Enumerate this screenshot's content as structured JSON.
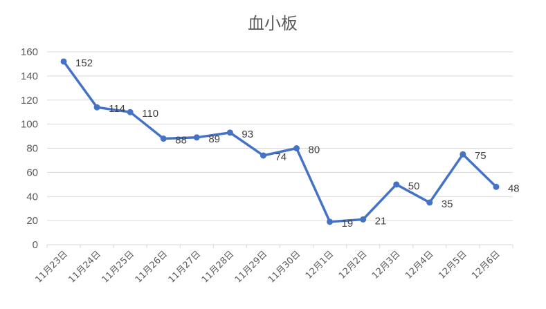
{
  "chart_data": {
    "type": "line",
    "title": "血小板",
    "xlabel": "",
    "ylabel": "",
    "ylim": [
      0,
      160
    ],
    "yticks": [
      0,
      20,
      40,
      60,
      80,
      100,
      120,
      140,
      160
    ],
    "grid": true,
    "legend": "none",
    "categories": [
      "11月23日",
      "11月24日",
      "11月25日",
      "11月26日",
      "11月27日",
      "11月28日",
      "11月29日",
      "11月30日",
      "12月1日",
      "12月2日",
      "12月3日",
      "12月4日",
      "12月5日",
      "12月6日"
    ],
    "series": [
      {
        "name": "血小板",
        "color": "#4472C4",
        "values": [
          152,
          114,
          110,
          88,
          89,
          93,
          74,
          80,
          19,
          21,
          50,
          35,
          75,
          48
        ]
      }
    ]
  }
}
